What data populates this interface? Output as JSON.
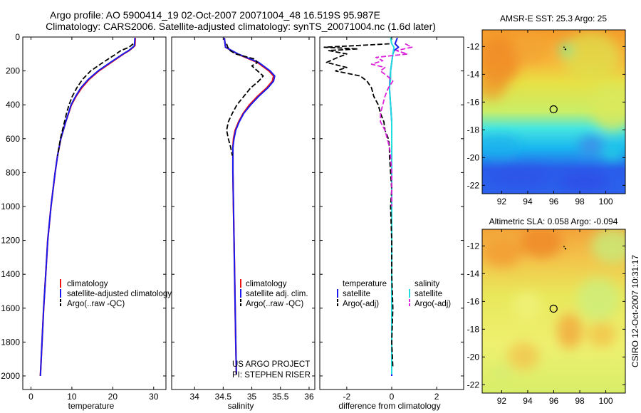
{
  "header": {
    "line1": "Argo profile: AO 5900414_19 02-Oct-2007 20071004_48 16.519S 95.987E",
    "line2": "Climatology: CARS2006. Satellite-adjusted climatology: synTS_20071004.nc (1.6d later)"
  },
  "footer": {
    "project": "US ARGO PROJECT",
    "pi": "PI: STEPHEN RISER",
    "stamp": "CSIRO 12-Oct-2007 10:31:17"
  },
  "colors": {
    "climatology": "#ee1111",
    "satellite": "#1a1aee",
    "argo": "#000000",
    "satellite_sal": "#22dddd",
    "argo_sal": "#dd22dd"
  },
  "chart_data": [
    {
      "type": "line",
      "id": "temperature",
      "xlabel": "temperature",
      "xlim": [
        -2,
        33
      ],
      "xticks": [
        0,
        10,
        20,
        30
      ],
      "ylim": [
        2080,
        0
      ],
      "yticks": [
        0,
        200,
        400,
        600,
        800,
        1000,
        1200,
        1400,
        1600,
        1800,
        2000
      ],
      "legend": [
        "climatology",
        "satellite-adjusted climatology",
        "Argo(..raw -QC)"
      ],
      "series": [
        {
          "name": "climatology",
          "depth": [
            5,
            50,
            60,
            80,
            100,
            150,
            200,
            250,
            300,
            350,
            400,
            500,
            600,
            700,
            800,
            1000,
            1200,
            1400,
            1600,
            1800,
            2000
          ],
          "values": [
            25.5,
            25.4,
            25.0,
            24.0,
            22.6,
            19.6,
            16.6,
            14.2,
            12.4,
            11.0,
            9.9,
            8.5,
            7.3,
            6.5,
            5.9,
            4.9,
            4.1,
            3.6,
            3.1,
            2.7,
            2.3
          ]
        },
        {
          "name": "satellite",
          "depth": [
            5,
            50,
            60,
            80,
            100,
            150,
            200,
            250,
            300,
            350,
            400,
            500,
            600,
            700,
            800,
            1000,
            1200,
            1400,
            1600,
            1800,
            2000
          ],
          "values": [
            25.4,
            25.3,
            24.9,
            23.9,
            22.5,
            19.4,
            16.4,
            14.0,
            12.2,
            10.9,
            9.8,
            8.5,
            7.3,
            6.5,
            5.9,
            4.9,
            4.1,
            3.6,
            3.1,
            2.7,
            2.3
          ]
        },
        {
          "name": "argo",
          "depth": [
            40,
            60,
            80,
            100,
            150,
            200,
            250,
            300,
            350,
            400,
            450,
            500,
            600,
            700
          ],
          "values": [
            25.0,
            24.0,
            22.0,
            20.8,
            17.6,
            14.6,
            12.6,
            11.2,
            10.1,
            9.3,
            8.7,
            8.2,
            7.2,
            6.5
          ]
        }
      ]
    },
    {
      "type": "line",
      "id": "salinity",
      "xlabel": "salinity",
      "xlim": [
        33.6,
        36.1
      ],
      "xticks": [
        34,
        34.5,
        35,
        35.5,
        36
      ],
      "ylim": [
        2080,
        0
      ],
      "legend": [
        "climatology",
        "satellite adj. clim.",
        "Argo(..raw -QC)"
      ],
      "series": [
        {
          "name": "climatology",
          "depth": [
            5,
            60,
            100,
            150,
            200,
            230,
            260,
            300,
            350,
            400,
            450,
            500,
            550,
            600,
            650,
            700,
            800,
            1000,
            1200,
            1400,
            1600,
            1800,
            1990
          ],
          "values": [
            34.52,
            34.54,
            34.75,
            35.1,
            35.3,
            35.38,
            35.36,
            35.26,
            35.1,
            34.96,
            34.85,
            34.77,
            34.71,
            34.68,
            34.67,
            34.67,
            34.67,
            34.68,
            34.69,
            34.7,
            34.71,
            34.72,
            34.73
          ]
        },
        {
          "name": "satellite",
          "depth": [
            5,
            60,
            100,
            150,
            200,
            230,
            260,
            300,
            350,
            400,
            450,
            500,
            550,
            600,
            650,
            700,
            800,
            1000,
            1200,
            1400,
            1600,
            1800,
            1990
          ],
          "values": [
            34.52,
            34.54,
            34.76,
            35.12,
            35.32,
            35.4,
            35.38,
            35.28,
            35.12,
            34.98,
            34.86,
            34.78,
            34.72,
            34.69,
            34.67,
            34.67,
            34.67,
            34.68,
            34.69,
            34.7,
            34.71,
            34.72,
            34.73
          ]
        },
        {
          "name": "argo",
          "depth": [
            40,
            60,
            80,
            100,
            130,
            150,
            170,
            200,
            230,
            260,
            300,
            350,
            400,
            450,
            500,
            550,
            600,
            650,
            700
          ],
          "values": [
            34.56,
            34.58,
            34.62,
            34.72,
            35.05,
            35.1,
            35.0,
            35.1,
            35.2,
            35.12,
            34.98,
            34.86,
            34.74,
            34.66,
            34.59,
            34.56,
            34.59,
            34.63,
            34.66
          ]
        }
      ]
    },
    {
      "type": "line",
      "id": "difference",
      "xlabel": "difference from climatology",
      "xlim": [
        -3.2,
        3.2
      ],
      "xticks": [
        -2,
        0,
        2
      ],
      "ylim": [
        2080,
        0
      ],
      "legend_titles": [
        "temperature",
        "salinity"
      ],
      "legend": [
        "satellite",
        "Argo(-adj)",
        "satellite",
        "Argo(-adj)"
      ],
      "series": [
        {
          "name": "temperature satellite",
          "depth": [
            5,
            40,
            60,
            80,
            100,
            150,
            200,
            300,
            400,
            500,
            800,
            1000,
            1500,
            2000
          ],
          "values": [
            0.25,
            0.15,
            0.3,
            0.1,
            0.05,
            0.0,
            -0.05,
            -0.1,
            -0.05,
            0.0,
            0.0,
            0.0,
            0.0,
            0.0
          ]
        },
        {
          "name": "salinity satellite",
          "depth": [
            5,
            40,
            60,
            100,
            150,
            200,
            250,
            300,
            400,
            500,
            700,
            1000,
            1500,
            1990
          ],
          "values": [
            -0.05,
            0.0,
            0.1,
            0.05,
            0.0,
            -0.05,
            -0.05,
            -0.1,
            -0.05,
            0.0,
            0.0,
            0.0,
            0.0,
            0.0
          ]
        },
        {
          "name": "temperature Argo(-adj)",
          "depth": [
            40,
            50,
            60,
            70,
            80,
            100,
            120,
            150,
            180,
            200,
            230,
            260,
            300,
            350,
            400,
            450,
            500,
            550,
            600,
            650,
            700,
            800,
            900,
            1000,
            1200,
            1400,
            1600,
            1800,
            1950
          ],
          "values": [
            -0.1,
            -1.5,
            -3.0,
            -1.5,
            -2.8,
            -2.0,
            -2.4,
            -2.9,
            -2.0,
            -2.5,
            -1.4,
            -1.1,
            -0.9,
            -0.8,
            -0.6,
            -0.5,
            -0.35,
            -0.3,
            -0.15,
            -0.1,
            -0.1,
            -0.05,
            0.0,
            -0.05,
            0.0,
            0.0,
            0.05,
            0.0,
            0.05
          ]
        },
        {
          "name": "salinity Argo(-adj)",
          "depth": [
            40,
            60,
            80,
            100,
            120,
            140,
            160,
            180,
            200,
            230,
            260,
            300,
            350,
            400,
            450,
            500,
            550,
            600,
            650,
            700,
            800,
            1000
          ],
          "values": [
            0.6,
            0.9,
            0.2,
            0.7,
            -0.7,
            -0.4,
            -0.9,
            -0.3,
            -0.5,
            -0.2,
            0.05,
            -0.15,
            -0.3,
            -0.4,
            -0.5,
            -0.5,
            -0.3,
            -0.2,
            -0.1,
            -0.05,
            0.0,
            0.0
          ]
        }
      ]
    },
    {
      "type": "heatmap",
      "id": "sst",
      "title": "AMSR-E SST: 25.3 Argo: 25",
      "xlim": [
        90.5,
        101.5
      ],
      "xticks": [
        92,
        94,
        96,
        98,
        100
      ],
      "ylim": [
        -22.6,
        -10.8
      ],
      "yticks": [
        -12,
        -14,
        -16,
        -18,
        -20,
        -22
      ],
      "argo_position": [
        95.987,
        -16.519
      ],
      "track_point": [
        96.9,
        -12.2
      ]
    },
    {
      "type": "heatmap",
      "id": "sla",
      "title": "Altimetric SLA: 0.058 Argo: -0.094",
      "xlim": [
        90.5,
        101.5
      ],
      "xticks": [
        92,
        94,
        96,
        98,
        100
      ],
      "ylim": [
        -22.6,
        -10.8
      ],
      "yticks": [
        -12,
        -14,
        -16,
        -18,
        -20,
        -22
      ],
      "argo_position": [
        95.987,
        -16.519
      ],
      "track_point": [
        96.9,
        -12.2
      ]
    }
  ]
}
